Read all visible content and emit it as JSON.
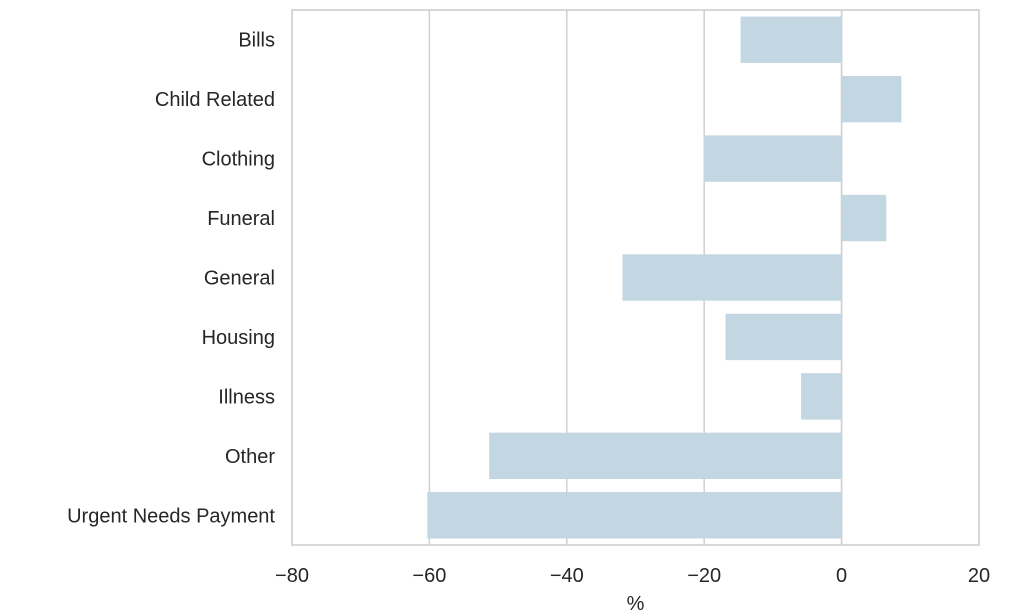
{
  "chart_data": {
    "type": "bar",
    "orientation": "horizontal",
    "title": "",
    "xlabel": "%",
    "ylabel": "",
    "categories": [
      "Bills",
      "Child Related",
      "Clothing",
      "Funeral",
      "General",
      "Housing",
      "Illness",
      "Other",
      "Urgent Needs Payment"
    ],
    "values": [
      -14.7,
      8.7,
      -20.1,
      6.5,
      -31.9,
      -16.9,
      -5.9,
      -51.3,
      -60.3
    ],
    "xlim": [
      -80,
      20
    ],
    "xticks": [
      -80,
      -60,
      -40,
      -20,
      0,
      20
    ],
    "xtick_labels": [
      "−80",
      "−60",
      "−40",
      "−20",
      "0",
      "20"
    ],
    "grid": "vertical",
    "legend": "none",
    "colors": {
      "bar": "#c3d7e2",
      "grid": "#d0d0d0",
      "frame": "#cccccc",
      "text": "#262626"
    }
  }
}
